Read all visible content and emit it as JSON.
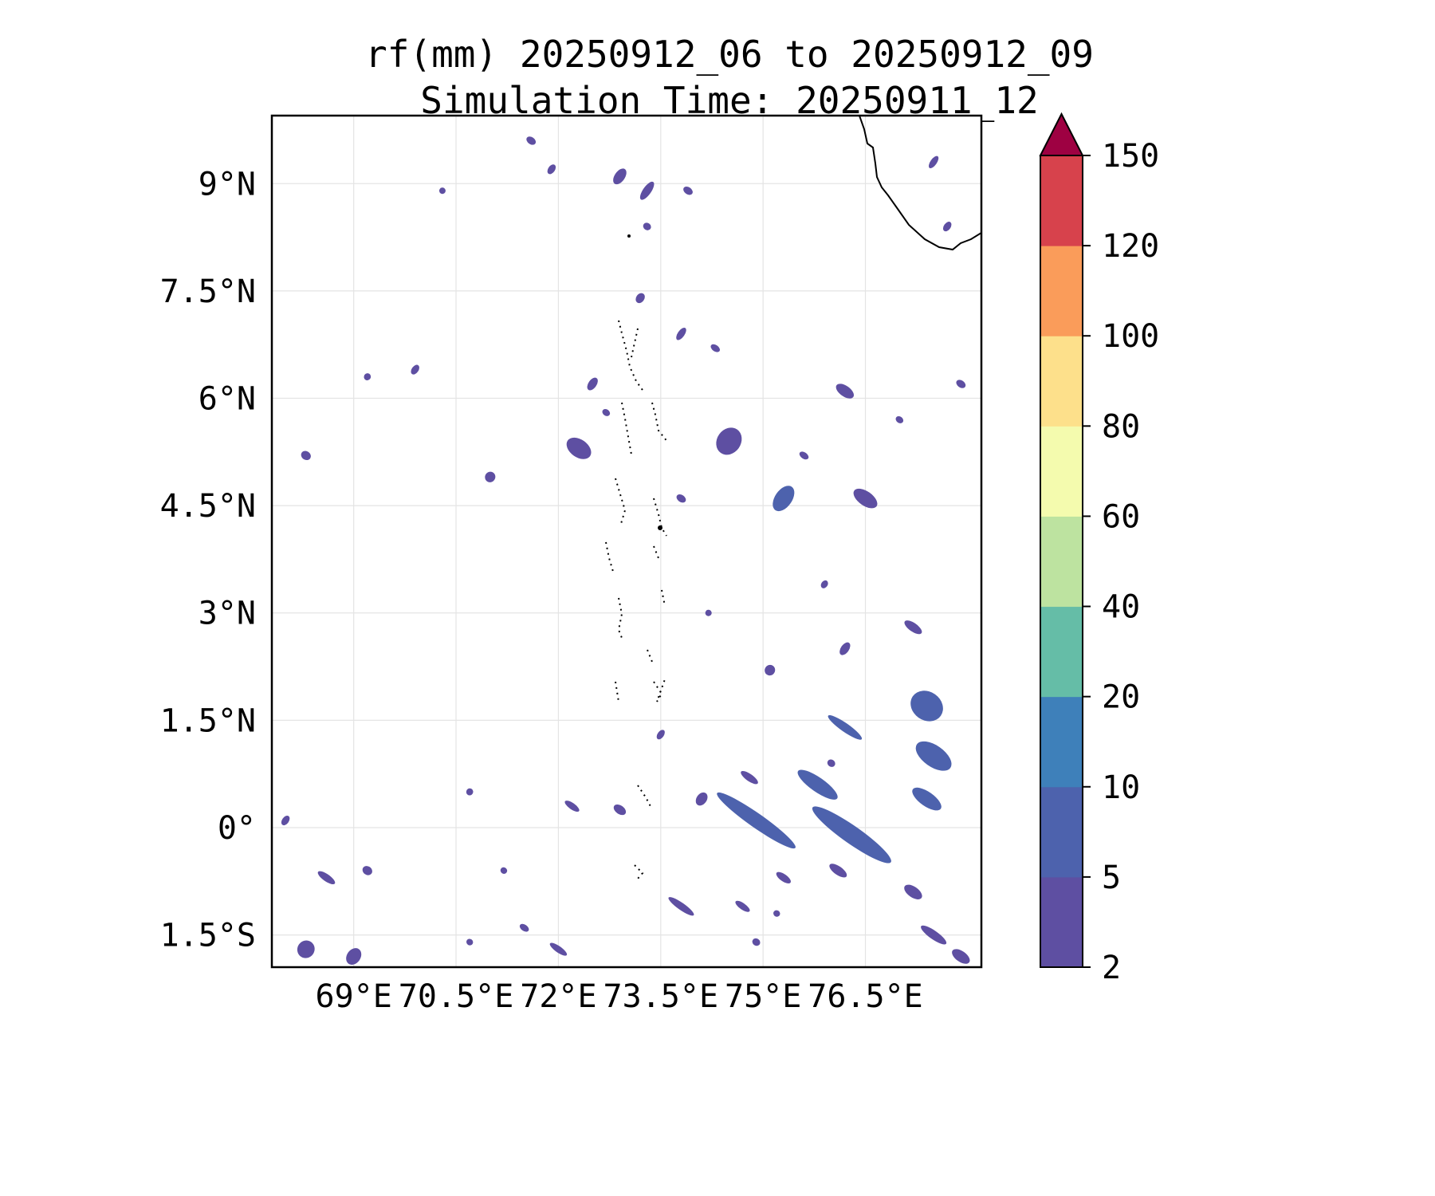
{
  "figure": {
    "title_line1": "rf(mm) 20250912_06 to 20250912_09",
    "title_line2": "Simulation Time: 20250911_12"
  },
  "map": {
    "lon_range": [
      67.8,
      78.2
    ],
    "lat_range": [
      -1.95,
      9.95
    ],
    "lon_ticks": [
      69,
      70.5,
      72,
      73.5,
      75,
      76.5
    ],
    "lon_tick_labels": [
      "69°E",
      "70.5°E",
      "72°E",
      "73.5°E",
      "75°E",
      "76.5°E"
    ],
    "lat_ticks": [
      9,
      7.5,
      6,
      4.5,
      3,
      1.5,
      0,
      -1.5
    ],
    "lat_tick_labels": [
      "9°N",
      "7.5°N",
      "6°N",
      "4.5°N",
      "3°N",
      "1.5°N",
      "0°",
      "1.5°S"
    ],
    "gridlines": true,
    "coastline": "southern tip of India / Sri Lanka coast in top-right corner; Maldives atoll outlines dotted near 73.5°E",
    "rain_color": "#5e4fa2"
  },
  "colorbar": {
    "levels": [
      "2",
      "5",
      "10",
      "20",
      "40",
      "60",
      "80",
      "100",
      "120",
      "150"
    ],
    "colors": [
      "#5e4fa2",
      "#4d62ad",
      "#3e80ba",
      "#65bda7",
      "#bde3a0",
      "#f4fbae",
      "#fde08b",
      "#fa9c5a",
      "#d7424c"
    ],
    "extend_color": "#9e0142",
    "extend": "max"
  },
  "chart_data": {
    "type": "heatmap",
    "variable": "rf(mm)",
    "period": "20250912_06 to 20250912_09",
    "simulation_time": "20250911_12",
    "units": "mm",
    "contour_levels": [
      2,
      5,
      10,
      20,
      40,
      60,
      80,
      100,
      120,
      150
    ],
    "rain_cells": [
      {
        "lon": 70.3,
        "lat": 8.9,
        "lon_extent": 0.05,
        "lat_extent": 0.05,
        "value": 3
      },
      {
        "lon": 71.6,
        "lat": 9.6,
        "lon_extent": 0.15,
        "lat_extent": 0.1,
        "value": 3
      },
      {
        "lon": 71.9,
        "lat": 9.2,
        "lon_extent": 0.1,
        "lat_extent": 0.15,
        "value": 3
      },
      {
        "lon": 72.9,
        "lat": 9.1,
        "lon_extent": 0.15,
        "lat_extent": 0.25,
        "value": 3
      },
      {
        "lon": 73.3,
        "lat": 8.9,
        "lon_extent": 0.12,
        "lat_extent": 0.3,
        "value": 4
      },
      {
        "lon": 73.9,
        "lat": 8.9,
        "lon_extent": 0.15,
        "lat_extent": 0.1,
        "value": 3
      },
      {
        "lon": 73.3,
        "lat": 8.4,
        "lon_extent": 0.12,
        "lat_extent": 0.1,
        "value": 3
      },
      {
        "lon": 73.2,
        "lat": 7.4,
        "lon_extent": 0.12,
        "lat_extent": 0.15,
        "value": 3
      },
      {
        "lon": 73.8,
        "lat": 6.9,
        "lon_extent": 0.1,
        "lat_extent": 0.2,
        "value": 3
      },
      {
        "lon": 74.3,
        "lat": 6.7,
        "lon_extent": 0.15,
        "lat_extent": 0.08,
        "value": 3
      },
      {
        "lon": 72.5,
        "lat": 6.2,
        "lon_extent": 0.12,
        "lat_extent": 0.2,
        "value": 3
      },
      {
        "lon": 69.9,
        "lat": 6.4,
        "lon_extent": 0.1,
        "lat_extent": 0.15,
        "value": 3
      },
      {
        "lon": 69.2,
        "lat": 6.3,
        "lon_extent": 0.1,
        "lat_extent": 0.1,
        "value": 3
      },
      {
        "lon": 68.3,
        "lat": 5.2,
        "lon_extent": 0.15,
        "lat_extent": 0.12,
        "value": 3
      },
      {
        "lon": 71.0,
        "lat": 4.9,
        "lon_extent": 0.15,
        "lat_extent": 0.15,
        "value": 3
      },
      {
        "lon": 72.3,
        "lat": 5.3,
        "lon_extent": 0.4,
        "lat_extent": 0.25,
        "value": 4
      },
      {
        "lon": 72.7,
        "lat": 5.8,
        "lon_extent": 0.12,
        "lat_extent": 0.08,
        "value": 3
      },
      {
        "lon": 74.5,
        "lat": 5.4,
        "lon_extent": 0.35,
        "lat_extent": 0.4,
        "value": 4
      },
      {
        "lon": 73.8,
        "lat": 4.6,
        "lon_extent": 0.15,
        "lat_extent": 0.1,
        "value": 3
      },
      {
        "lon": 75.3,
        "lat": 4.6,
        "lon_extent": 0.25,
        "lat_extent": 0.4,
        "value": 5
      },
      {
        "lon": 75.6,
        "lat": 5.2,
        "lon_extent": 0.15,
        "lat_extent": 0.08,
        "value": 3
      },
      {
        "lon": 76.2,
        "lat": 6.1,
        "lon_extent": 0.3,
        "lat_extent": 0.15,
        "value": 4
      },
      {
        "lon": 77.0,
        "lat": 5.7,
        "lon_extent": 0.12,
        "lat_extent": 0.08,
        "value": 3
      },
      {
        "lon": 77.9,
        "lat": 6.2,
        "lon_extent": 0.15,
        "lat_extent": 0.1,
        "value": 3
      },
      {
        "lon": 76.5,
        "lat": 4.6,
        "lon_extent": 0.4,
        "lat_extent": 0.2,
        "value": 3
      },
      {
        "lon": 77.7,
        "lat": 8.4,
        "lon_extent": 0.1,
        "lat_extent": 0.15,
        "value": 3
      },
      {
        "lon": 77.5,
        "lat": 9.3,
        "lon_extent": 0.05,
        "lat_extent": 0.2,
        "value": 3
      },
      {
        "lon": 75.9,
        "lat": 3.4,
        "lon_extent": 0.08,
        "lat_extent": 0.12,
        "value": 3
      },
      {
        "lon": 77.2,
        "lat": 2.8,
        "lon_extent": 0.3,
        "lat_extent": 0.12,
        "value": 4
      },
      {
        "lon": 76.2,
        "lat": 2.5,
        "lon_extent": 0.12,
        "lat_extent": 0.2,
        "value": 3
      },
      {
        "lon": 75.1,
        "lat": 2.2,
        "lon_extent": 0.15,
        "lat_extent": 0.15,
        "value": 3
      },
      {
        "lon": 77.4,
        "lat": 1.7,
        "lon_extent": 0.5,
        "lat_extent": 0.4,
        "value": 5
      },
      {
        "lon": 76.2,
        "lat": 1.4,
        "lon_extent": 0.6,
        "lat_extent": 0.12,
        "value": 5
      },
      {
        "lon": 75.8,
        "lat": 0.6,
        "lon_extent": 0.7,
        "lat_extent": 0.2,
        "value": 5
      },
      {
        "lon": 74.9,
        "lat": 0.1,
        "lon_extent": 1.4,
        "lat_extent": 0.2,
        "value": 6
      },
      {
        "lon": 76.3,
        "lat": -0.1,
        "lon_extent": 1.4,
        "lat_extent": 0.25,
        "value": 7
      },
      {
        "lon": 77.4,
        "lat": 0.4,
        "lon_extent": 0.5,
        "lat_extent": 0.2,
        "value": 5
      },
      {
        "lon": 77.5,
        "lat": 1.0,
        "lon_extent": 0.6,
        "lat_extent": 0.3,
        "value": 5
      },
      {
        "lon": 74.8,
        "lat": 0.7,
        "lon_extent": 0.3,
        "lat_extent": 0.1,
        "value": 3
      },
      {
        "lon": 74.1,
        "lat": 0.4,
        "lon_extent": 0.15,
        "lat_extent": 0.2,
        "value": 3
      },
      {
        "lon": 73.8,
        "lat": -1.1,
        "lon_extent": 0.45,
        "lat_extent": 0.1,
        "value": 4
      },
      {
        "lon": 74.7,
        "lat": -1.1,
        "lon_extent": 0.25,
        "lat_extent": 0.08,
        "value": 3
      },
      {
        "lon": 75.3,
        "lat": -0.7,
        "lon_extent": 0.25,
        "lat_extent": 0.1,
        "value": 3
      },
      {
        "lon": 76.1,
        "lat": -0.6,
        "lon_extent": 0.3,
        "lat_extent": 0.12,
        "value": 4
      },
      {
        "lon": 77.2,
        "lat": -0.9,
        "lon_extent": 0.3,
        "lat_extent": 0.15,
        "value": 3
      },
      {
        "lon": 77.5,
        "lat": -1.5,
        "lon_extent": 0.45,
        "lat_extent": 0.12,
        "value": 3
      },
      {
        "lon": 77.9,
        "lat": -1.8,
        "lon_extent": 0.3,
        "lat_extent": 0.15,
        "value": 4
      },
      {
        "lon": 72.2,
        "lat": 0.3,
        "lon_extent": 0.25,
        "lat_extent": 0.08,
        "value": 3
      },
      {
        "lon": 72.9,
        "lat": 0.25,
        "lon_extent": 0.2,
        "lat_extent": 0.12,
        "value": 3
      },
      {
        "lon": 70.7,
        "lat": 0.5,
        "lon_extent": 0.1,
        "lat_extent": 0.1,
        "value": 3
      },
      {
        "lon": 68.3,
        "lat": -1.7,
        "lon_extent": 0.25,
        "lat_extent": 0.25,
        "value": 4
      },
      {
        "lon": 69.0,
        "lat": -1.8,
        "lon_extent": 0.2,
        "lat_extent": 0.25,
        "value": 3
      },
      {
        "lon": 68.6,
        "lat": -0.7,
        "lon_extent": 0.3,
        "lat_extent": 0.1,
        "value": 3
      },
      {
        "lon": 69.2,
        "lat": -0.6,
        "lon_extent": 0.15,
        "lat_extent": 0.12,
        "value": 3
      },
      {
        "lon": 68.0,
        "lat": 0.1,
        "lon_extent": 0.1,
        "lat_extent": 0.15,
        "value": 3
      },
      {
        "lon": 70.7,
        "lat": -1.6,
        "lon_extent": 0.1,
        "lat_extent": 0.06,
        "value": 3
      },
      {
        "lon": 71.5,
        "lat": -1.4,
        "lon_extent": 0.15,
        "lat_extent": 0.06,
        "value": 3
      },
      {
        "lon": 72.0,
        "lat": -1.7,
        "lon_extent": 0.3,
        "lat_extent": 0.08,
        "value": 3
      },
      {
        "lon": 71.2,
        "lat": -0.6,
        "lon_extent": 0.1,
        "lat_extent": 0.05,
        "value": 3
      },
      {
        "lon": 75.2,
        "lat": -1.2,
        "lon_extent": 0.1,
        "lat_extent": 0.08,
        "value": 3
      },
      {
        "lon": 74.9,
        "lat": -1.6,
        "lon_extent": 0.12,
        "lat_extent": 0.1,
        "value": 3
      },
      {
        "lon": 73.5,
        "lat": 1.3,
        "lon_extent": 0.08,
        "lat_extent": 0.15,
        "value": 3
      },
      {
        "lon": 74.2,
        "lat": 3.0,
        "lon_extent": 0.08,
        "lat_extent": 0.08,
        "value": 3
      },
      {
        "lon": 76.0,
        "lat": 0.9,
        "lon_extent": 0.12,
        "lat_extent": 0.1,
        "value": 3
      }
    ]
  }
}
